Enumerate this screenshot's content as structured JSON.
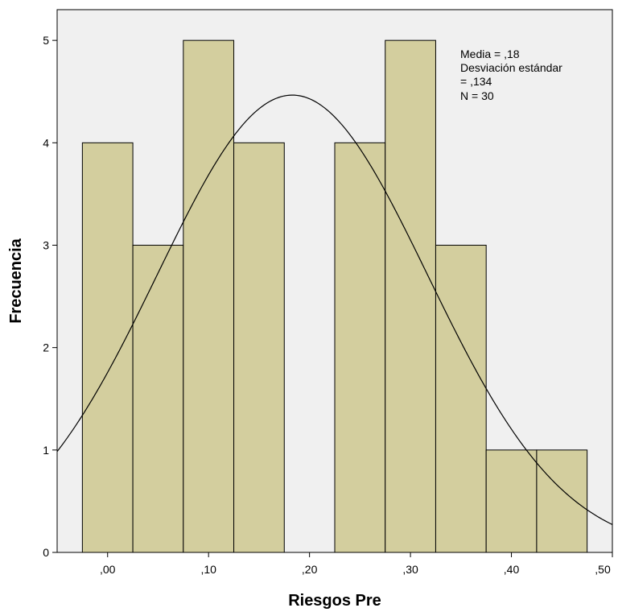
{
  "chart_data": {
    "type": "bar",
    "title": "",
    "xlabel": "Riesgos Pre",
    "ylabel": "Frecuencia",
    "bin_width": 0.05,
    "bin_centers": [
      0.0,
      0.05,
      0.1,
      0.15,
      0.2,
      0.25,
      0.3,
      0.35,
      0.4,
      0.45
    ],
    "values": [
      4,
      3,
      5,
      4,
      0,
      4,
      5,
      3,
      1,
      1
    ],
    "xlim": [
      -0.05,
      0.5
    ],
    "ylim": [
      0,
      5.3
    ],
    "x_ticks": [
      0.0,
      0.1,
      0.2,
      0.3,
      0.4,
      0.5
    ],
    "x_tick_labels": [
      ",00",
      ",10",
      ",20",
      ",30",
      ",40",
      ",50"
    ],
    "y_ticks": [
      0,
      1,
      2,
      3,
      4,
      5
    ],
    "y_tick_labels": [
      "0",
      "1",
      "2",
      "3",
      "4",
      "5"
    ],
    "normal_curve": {
      "mean": 0.183,
      "sd": 0.134,
      "n": 30
    },
    "legend": "none",
    "grid": false,
    "stats_annotation": [
      "Media = ,18",
      "Desviación estándar",
      "= ,134",
      "N = 30"
    ],
    "colors": {
      "bar_fill": "#d3ce9e",
      "bar_stroke": "#000000",
      "plot_background": "#f0f0f0",
      "curve": "#000000"
    }
  }
}
